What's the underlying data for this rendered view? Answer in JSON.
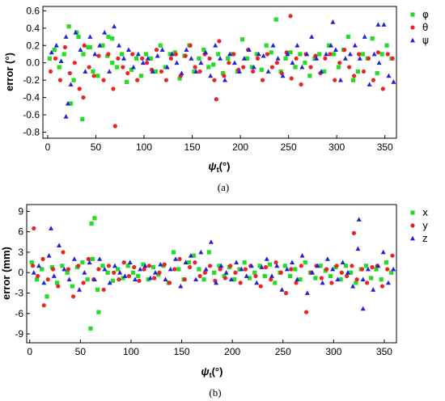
{
  "chart_data": [
    {
      "type": "scatter",
      "panel": "(a)",
      "xlabel": "ψt(°)",
      "ylabel": "error (°)",
      "xlim": [
        -5,
        362
      ],
      "ylim": [
        -0.87,
        0.65
      ],
      "xticks": [
        0,
        50,
        100,
        150,
        200,
        250,
        300,
        350
      ],
      "yticks": [
        -0.8,
        -0.6,
        -0.4,
        -0.2,
        0.0,
        0.2,
        0.4,
        0.6
      ],
      "ytick_labels": [
        "-0.8",
        "-0.6",
        "-0.4",
        "-0.2",
        "0.0",
        "0.2",
        "0.4",
        "0.6"
      ],
      "grid": false,
      "legend_position": "right",
      "series": [
        {
          "name": "φ",
          "marker": "square",
          "color": "#22dd22",
          "x": [
            2,
            7,
            12,
            17,
            22,
            27,
            32,
            37,
            42,
            47,
            52,
            57,
            62,
            67,
            72,
            77,
            82,
            87,
            92,
            97,
            102,
            107,
            112,
            117,
            122,
            127,
            132,
            137,
            142,
            147,
            152,
            157,
            162,
            167,
            172,
            177,
            182,
            187,
            192,
            197,
            202,
            207,
            212,
            217,
            222,
            227,
            232,
            237,
            242,
            247,
            252,
            257,
            262,
            267,
            272,
            277,
            282,
            287,
            292,
            297,
            302,
            307,
            312,
            317,
            322,
            327,
            332,
            337,
            342,
            347,
            352,
            357,
            24,
            30,
            36,
            44,
            63,
            67
          ],
          "y": [
            0.05,
            0.15,
            -0.05,
            0.1,
            0.42,
            -0.2,
            0.3,
            0.1,
            0.18,
            -0.1,
            -0.15,
            0.2,
            0.08,
            0.0,
            -0.05,
            0.1,
            -0.22,
            -0.08,
            0.05,
            -0.15,
            0.1,
            0.05,
            -0.1,
            0.2,
            -0.05,
            0.1,
            0.12,
            -0.18,
            0.08,
            0.2,
            -0.1,
            0.05,
            0.15,
            -0.05,
            -0.02,
            0.1,
            -0.12,
            0.05,
            0.1,
            -0.1,
            0.27,
            0.05,
            -0.05,
            0.1,
            -0.08,
            0.2,
            0.12,
            0.5,
            -0.1,
            0.05,
            0.12,
            -0.05,
            0.1,
            0.0,
            -0.15,
            0.05,
            0.1,
            -0.1,
            0.2,
            0.1,
            -0.05,
            0.15,
            0.3,
            -0.2,
            -0.1,
            0.1,
            0.05,
            0.28,
            -0.12,
            0.1,
            0.2,
            0.05,
            -0.47,
            0.35,
            -0.65,
            0.18,
            0.3,
            0.28
          ]
        },
        {
          "name": "θ",
          "marker": "circle",
          "color": "#ee2222",
          "x": [
            3,
            8,
            13,
            18,
            23,
            28,
            33,
            38,
            43,
            48,
            53,
            58,
            63,
            68,
            73,
            78,
            83,
            88,
            93,
            98,
            103,
            108,
            113,
            118,
            123,
            128,
            133,
            138,
            143,
            148,
            153,
            158,
            163,
            168,
            173,
            178,
            183,
            188,
            193,
            198,
            203,
            208,
            213,
            218,
            223,
            228,
            233,
            238,
            243,
            248,
            253,
            258,
            263,
            268,
            273,
            278,
            283,
            288,
            293,
            298,
            303,
            308,
            313,
            318,
            323,
            328,
            333,
            338,
            343,
            348,
            353,
            358,
            70,
            175,
            252,
            37
          ],
          "y": [
            -0.1,
            0.05,
            -0.2,
            0.18,
            -0.12,
            0.0,
            -0.3,
            0.2,
            -0.05,
            -0.15,
            0.08,
            -0.2,
            0.1,
            -0.3,
            0.05,
            -0.05,
            -0.12,
            0.1,
            -0.2,
            0.05,
            0.0,
            -0.08,
            0.15,
            -0.1,
            -0.2,
            0.05,
            0.1,
            -0.15,
            0.08,
            0.2,
            -0.05,
            -0.1,
            0.1,
            0.05,
            -0.2,
            0.25,
            -0.15,
            0.0,
            0.1,
            -0.08,
            -0.05,
            0.15,
            -0.1,
            0.05,
            -0.2,
            0.1,
            -0.05,
            0.0,
            -0.12,
            0.12,
            -0.18,
            0.05,
            -0.25,
            0.1,
            -0.05,
            0.08,
            -0.12,
            0.05,
            0.1,
            -0.2,
            0.0,
            0.15,
            -0.05,
            -0.15,
            0.1,
            -0.1,
            0.05,
            -0.2,
            0.12,
            -0.3,
            0.1,
            0.05,
            -0.73,
            -0.42,
            0.54,
            -0.4
          ]
        },
        {
          "name": "ψ",
          "marker": "triangle",
          "color": "#2222dd",
          "x": [
            4,
            9,
            14,
            19,
            24,
            29,
            34,
            39,
            44,
            49,
            54,
            59,
            64,
            69,
            74,
            79,
            84,
            89,
            94,
            99,
            104,
            109,
            114,
            119,
            124,
            129,
            134,
            139,
            144,
            149,
            154,
            159,
            164,
            169,
            174,
            179,
            184,
            189,
            194,
            199,
            204,
            209,
            214,
            219,
            224,
            229,
            234,
            239,
            244,
            249,
            254,
            259,
            264,
            269,
            274,
            279,
            284,
            289,
            294,
            299,
            304,
            309,
            314,
            319,
            324,
            329,
            334,
            339,
            344,
            349,
            354,
            359,
            296,
            343,
            19,
            21
          ],
          "y": [
            0.12,
            0.2,
            0.02,
            0.3,
            -0.25,
            0.35,
            0.15,
            -0.1,
            0.3,
            0.1,
            0.2,
            0.35,
            -0.1,
            0.42,
            0.2,
            0.05,
            0.15,
            -0.05,
            0.1,
            0.0,
            0.05,
            -0.1,
            0.08,
            0.15,
            -0.05,
            0.1,
            0.0,
            -0.12,
            0.15,
            0.05,
            -0.1,
            0.0,
            0.12,
            -0.15,
            0.2,
            0.05,
            -0.2,
            0.1,
            0.0,
            -0.1,
            0.05,
            0.15,
            -0.05,
            0.1,
            0.08,
            -0.1,
            0.2,
            0.05,
            -0.15,
            0.1,
            0.0,
            0.2,
            -0.05,
            0.1,
            0.3,
            0.05,
            -0.1,
            0.1,
            0.2,
            0.15,
            -0.2,
            0.05,
            0.1,
            0.2,
            0.05,
            0.3,
            -0.25,
            0.1,
            0.0,
            0.44,
            -0.15,
            -0.22,
            0.47,
            0.44,
            -0.62,
            -0.47
          ]
        }
      ]
    },
    {
      "type": "scatter",
      "panel": "(b)",
      "xlabel": "ψt(°)",
      "ylabel": "error (mm)",
      "xlim": [
        -3,
        362
      ],
      "ylim": [
        -10.3,
        10.0
      ],
      "xticks": [
        0,
        50,
        100,
        150,
        200,
        250,
        300,
        350
      ],
      "yticks": [
        -9,
        -6,
        -3,
        0,
        3,
        6,
        9
      ],
      "ytick_labels": [
        "-9",
        "-6",
        "-3",
        "0",
        "3",
        "6",
        "9"
      ],
      "grid": false,
      "legend_position": "right",
      "series": [
        {
          "name": "x",
          "marker": "square",
          "color": "#22dd22",
          "x": [
            2,
            7,
            12,
            17,
            22,
            27,
            32,
            37,
            42,
            47,
            52,
            57,
            62,
            67,
            72,
            77,
            82,
            87,
            92,
            97,
            102,
            107,
            112,
            117,
            122,
            127,
            132,
            137,
            142,
            147,
            152,
            157,
            162,
            167,
            172,
            177,
            182,
            187,
            192,
            197,
            202,
            207,
            212,
            217,
            222,
            227,
            232,
            237,
            242,
            247,
            252,
            257,
            262,
            267,
            272,
            277,
            282,
            287,
            292,
            297,
            302,
            307,
            312,
            317,
            322,
            327,
            332,
            337,
            342,
            347,
            352,
            357,
            61,
            60,
            64,
            68
          ],
          "y": [
            1.5,
            -1.0,
            0.5,
            -3.5,
            0.8,
            -1.5,
            1.0,
            0.0,
            -2.0,
            0.8,
            1.5,
            -1.0,
            2.0,
            -2.5,
            1.0,
            0.0,
            -1.2,
            0.5,
            -0.8,
            1.0,
            0.0,
            -0.5,
            1.2,
            -1.0,
            0.8,
            -0.3,
            1.0,
            -1.5,
            3.0,
            0.5,
            -1.0,
            1.5,
            2.5,
            0.5,
            -1.0,
            3.0,
            0.0,
            1.0,
            -0.5,
            0.8,
            -1.0,
            0.5,
            1.5,
            -0.8,
            0.0,
            1.0,
            -0.5,
            1.2,
            -1.5,
            0.0,
            1.0,
            -0.5,
            0.5,
            -1.0,
            1.5,
            0.0,
            -0.8,
            1.0,
            0.3,
            -0.5,
            0.8,
            -1.0,
            1.0,
            0.0,
            -1.5,
            0.5,
            1.0,
            -0.8,
            0.5,
            -1.0,
            1.5,
            0.0,
            7.2,
            -8.2,
            8.0,
            -5.8
          ]
        },
        {
          "name": "y",
          "marker": "circle",
          "color": "#ee2222",
          "x": [
            3,
            8,
            13,
            18,
            23,
            28,
            33,
            38,
            43,
            48,
            53,
            58,
            63,
            68,
            73,
            78,
            83,
            88,
            93,
            98,
            103,
            108,
            113,
            118,
            123,
            128,
            133,
            138,
            143,
            148,
            153,
            158,
            163,
            168,
            173,
            178,
            183,
            188,
            193,
            198,
            203,
            208,
            213,
            218,
            223,
            228,
            233,
            238,
            243,
            248,
            253,
            258,
            263,
            268,
            273,
            278,
            283,
            288,
            293,
            298,
            303,
            308,
            313,
            318,
            323,
            328,
            333,
            338,
            343,
            348,
            353,
            358,
            4,
            14,
            320
          ],
          "y": [
            1.0,
            -0.5,
            2.0,
            -1.0,
            0.5,
            -2.0,
            3.0,
            0.5,
            -3.5,
            1.0,
            -1.5,
            2.0,
            -1.0,
            0.5,
            -2.5,
            1.0,
            0.0,
            -1.0,
            1.5,
            -0.5,
            0.8,
            -1.2,
            0.5,
            1.0,
            -0.8,
            0.0,
            1.2,
            -1.5,
            0.5,
            2.0,
            -1.0,
            0.8,
            1.5,
            -0.5,
            0.0,
            1.0,
            -1.2,
            0.5,
            -0.8,
            1.0,
            0.0,
            -1.5,
            0.5,
            1.0,
            -0.5,
            -2.0,
            0.8,
            -1.0,
            1.5,
            0.0,
            -3.0,
            0.5,
            -1.5,
            1.0,
            -5.8,
            0.0,
            1.0,
            -0.8,
            0.5,
            -1.5,
            1.0,
            0.0,
            -0.5,
            1.0,
            -1.0,
            0.5,
            -1.5,
            0.8,
            1.0,
            -2.0,
            0.5,
            2.5,
            6.5,
            -4.8,
            5.8
          ]
        },
        {
          "name": "z",
          "marker": "triangle",
          "color": "#2222dd",
          "x": [
            4,
            9,
            14,
            19,
            24,
            29,
            34,
            39,
            44,
            49,
            54,
            59,
            64,
            69,
            74,
            79,
            84,
            89,
            94,
            99,
            104,
            109,
            114,
            119,
            124,
            129,
            134,
            139,
            144,
            149,
            154,
            159,
            164,
            169,
            174,
            179,
            184,
            189,
            194,
            199,
            204,
            209,
            214,
            219,
            224,
            229,
            234,
            239,
            244,
            249,
            254,
            259,
            264,
            269,
            274,
            279,
            284,
            289,
            294,
            299,
            304,
            309,
            314,
            319,
            324,
            329,
            334,
            339,
            344,
            349,
            354,
            359,
            21,
            325,
            329
          ],
          "y": [
            0.0,
            1.0,
            -1.5,
            2.5,
            -0.5,
            4.0,
            0.5,
            -1.0,
            2.0,
            -2.5,
            0.0,
            1.5,
            -1.0,
            2.0,
            0.5,
            -1.5,
            1.0,
            0.0,
            -0.5,
            1.5,
            -1.0,
            0.5,
            1.0,
            -0.8,
            0.0,
            1.2,
            -1.0,
            0.5,
            2.0,
            -2.0,
            1.5,
            2.5,
            -1.0,
            3.0,
            0.5,
            4.5,
            -1.5,
            1.0,
            0.0,
            -1.0,
            1.5,
            0.5,
            -0.5,
            1.0,
            -1.5,
            0.8,
            2.0,
            -0.5,
            1.0,
            -2.5,
            0.5,
            1.5,
            -1.0,
            2.5,
            -3.0,
            0.0,
            1.0,
            -1.5,
            2.0,
            0.5,
            -1.0,
            1.5,
            0.0,
            -2.0,
            3.5,
            -1.0,
            0.5,
            -2.5,
            1.0,
            3.0,
            -1.5,
            0.5,
            6.5,
            7.8,
            -5.3
          ]
        }
      ]
    }
  ]
}
